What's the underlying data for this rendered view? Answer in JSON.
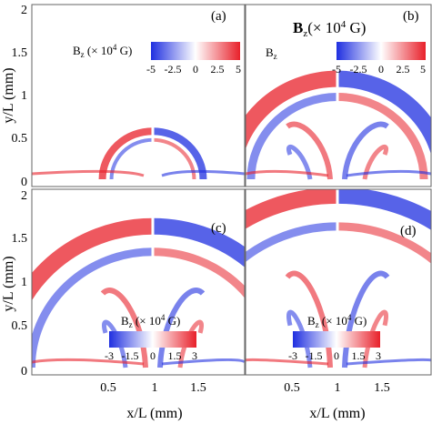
{
  "chart_data": [
    {
      "type": "heatmap",
      "panel_label": "(a)",
      "xlabel": "",
      "ylabel": "",
      "xlim": [
        0,
        2
      ],
      "ylim": [
        0,
        2
      ],
      "colorbar": {
        "title_main": "B",
        "title_sub": "z",
        "title_unit": " (× 10",
        "title_exp": "4",
        "title_end": " G)",
        "ticks": [
          "-5",
          "-2.5",
          "0",
          "2.5",
          "5"
        ],
        "range": [
          -5,
          5
        ],
        "colors": {
          "low": "#1f2fe0",
          "mid": "#ffffff",
          "high": "#e8202a"
        }
      },
      "front_height_mm": 0.55
    },
    {
      "type": "heatmap",
      "panel_label": "(b)",
      "xlabel": "",
      "ylabel": "",
      "xlim": [
        0,
        2
      ],
      "ylim": [
        0,
        2
      ],
      "colorbar": {
        "title_main": "B",
        "title_sub": "z",
        "title_unit": "(× 10",
        "title_exp": "4",
        "title_end": " G)",
        "ticks": [
          "-5",
          "-2.5",
          "0",
          "2.5",
          "5"
        ],
        "range": [
          -5,
          5
        ],
        "colors": {
          "low": "#1f2fe0",
          "mid": "#ffffff",
          "high": "#e8202a"
        }
      },
      "front_height_mm": 1.15
    },
    {
      "type": "heatmap",
      "panel_label": "(c)",
      "xlabel": "",
      "ylabel": "",
      "xlim": [
        0,
        2
      ],
      "ylim": [
        0,
        2
      ],
      "colorbar": {
        "title_main": "B",
        "title_sub": "z",
        "title_unit": " (× 10",
        "title_exp": "4",
        "title_end": " G)",
        "ticks": [
          "-3",
          "-1.5",
          "0",
          "1.5",
          "3"
        ],
        "range": [
          -3,
          3
        ],
        "colors": {
          "low": "#1f2fe0",
          "mid": "#ffffff",
          "high": "#e8202a"
        }
      },
      "front_height_mm": 1.6
    },
    {
      "type": "heatmap",
      "panel_label": "(d)",
      "xlabel": "",
      "ylabel": "",
      "xlim": [
        0,
        2
      ],
      "ylim": [
        0,
        2
      ],
      "colorbar": {
        "title_main": "B",
        "title_sub": "z",
        "title_unit": " (× 10",
        "title_exp": "4",
        "title_end": " G)",
        "ticks": [
          "-3",
          "-1.5",
          "0",
          "1.5",
          "3"
        ],
        "range": [
          -3,
          3
        ],
        "colors": {
          "low": "#1f2fe0",
          "mid": "#ffffff",
          "high": "#e8202a"
        }
      },
      "front_height_mm": 1.95
    }
  ],
  "axes": {
    "ylabel": "y/L (mm)",
    "xlabel": "x/L (mm)",
    "y_ticks_top": [
      "0",
      "0.5",
      "1",
      "1.5",
      "2"
    ],
    "y_ticks_bottom": [
      "0",
      "0.5",
      "1",
      "1.5",
      "2"
    ],
    "x_ticks": [
      "0.5",
      "1",
      "1.5"
    ]
  }
}
